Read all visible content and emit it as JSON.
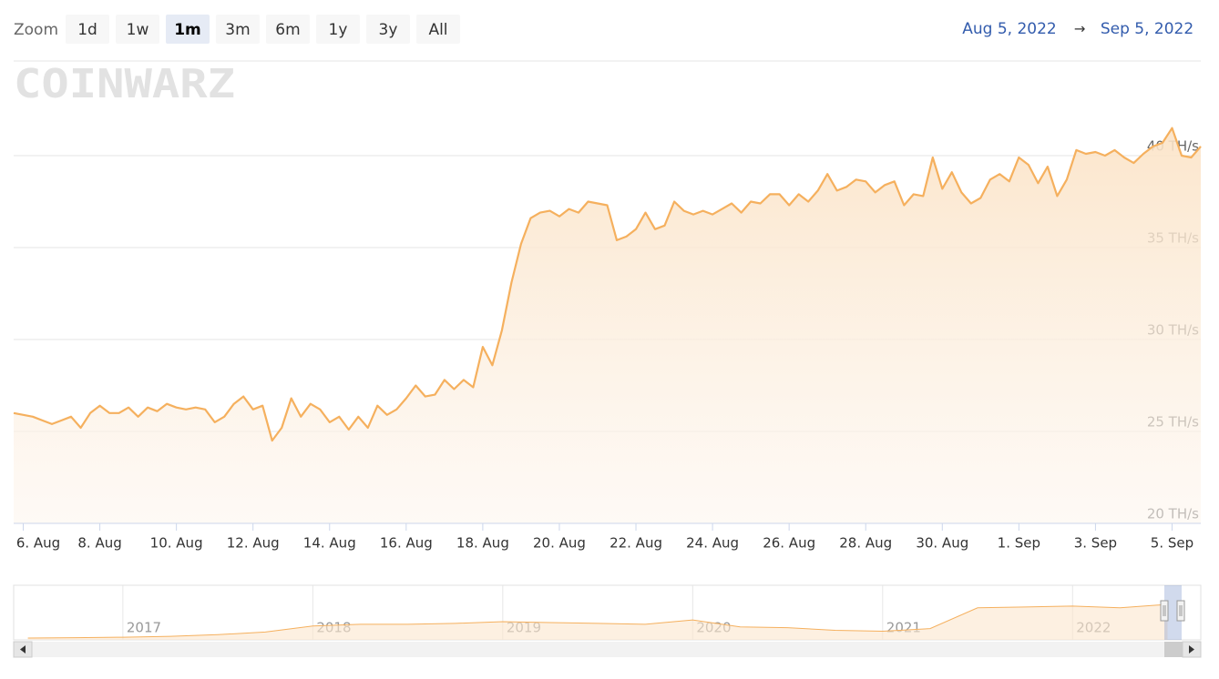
{
  "range_selector": {
    "label": "Zoom",
    "buttons": [
      "1d",
      "1w",
      "1m",
      "3m",
      "6m",
      "1y",
      "3y",
      "All"
    ],
    "selected": "1m",
    "from": "Aug 5, 2022",
    "arrow": "→",
    "to": "Sep 5, 2022"
  },
  "watermark": "COINWARZ",
  "chart_data": {
    "type": "area",
    "color": "#f5b05e",
    "grid": true,
    "ylim": [
      20,
      45
    ],
    "yticks": [
      {
        "value": 20,
        "label": "20 TH/s"
      },
      {
        "value": 25,
        "label": "25 TH/s"
      },
      {
        "value": 30,
        "label": "30 TH/s"
      },
      {
        "value": 35,
        "label": "35 TH/s"
      },
      {
        "value": 40,
        "label": "40 TH/s"
      }
    ],
    "categories": [
      null,
      "6. Aug",
      null,
      null,
      null,
      null,
      null,
      null,
      null,
      "8. Aug",
      null,
      null,
      null,
      null,
      null,
      null,
      null,
      "10. Aug",
      null,
      null,
      null,
      null,
      null,
      null,
      null,
      "12. Aug",
      null,
      null,
      null,
      null,
      null,
      null,
      null,
      "14. Aug",
      null,
      null,
      null,
      null,
      null,
      null,
      null,
      "16. Aug",
      null,
      null,
      null,
      null,
      null,
      null,
      null,
      "18. Aug",
      null,
      null,
      null,
      null,
      null,
      null,
      null,
      "20. Aug",
      null,
      null,
      null,
      null,
      null,
      null,
      null,
      "22. Aug",
      null,
      null,
      null,
      null,
      null,
      null,
      null,
      "24. Aug",
      null,
      null,
      null,
      null,
      null,
      null,
      null,
      "26. Aug",
      null,
      null,
      null,
      null,
      null,
      null,
      null,
      "28. Aug",
      null,
      null,
      null,
      null,
      null,
      null,
      null,
      "30. Aug",
      null,
      null,
      null,
      null,
      null,
      null,
      null,
      "1. Sep",
      null,
      null,
      null,
      null,
      null,
      null,
      null,
      "3. Sep",
      null,
      null,
      null,
      null,
      null,
      null,
      null,
      "5. Sep",
      null,
      null,
      null
    ],
    "values": [
      26.0,
      25.9,
      25.8,
      25.6,
      25.4,
      25.6,
      25.8,
      25.2,
      26.0,
      26.4,
      26.0,
      26.0,
      26.3,
      25.8,
      26.3,
      26.1,
      26.5,
      26.3,
      26.2,
      26.3,
      26.2,
      25.5,
      25.8,
      26.5,
      26.9,
      26.2,
      26.4,
      24.5,
      25.2,
      26.8,
      25.8,
      26.5,
      26.2,
      25.5,
      25.8,
      25.1,
      25.8,
      25.2,
      26.4,
      25.9,
      26.2,
      26.8,
      27.5,
      26.9,
      27.0,
      27.8,
      27.3,
      27.8,
      27.4,
      29.6,
      28.6,
      30.5,
      33.1,
      35.2,
      36.6,
      36.9,
      37.0,
      36.7,
      37.1,
      36.9,
      37.5,
      37.4,
      37.3,
      35.4,
      35.6,
      36.0,
      36.9,
      36.0,
      36.2,
      37.5,
      37.0,
      36.8,
      37.0,
      36.8,
      37.1,
      37.4,
      36.9,
      37.5,
      37.4,
      37.9,
      37.9,
      37.3,
      37.9,
      37.5,
      38.1,
      39.0,
      38.1,
      38.3,
      38.7,
      38.6,
      38.0,
      38.4,
      38.6,
      37.3,
      37.9,
      37.8,
      39.9,
      38.2,
      39.1,
      38.0,
      37.4,
      37.7,
      38.7,
      39.0,
      38.6,
      39.9,
      39.5,
      38.5,
      39.4,
      37.8,
      38.7,
      40.3,
      40.1,
      40.2,
      40.0,
      40.3,
      39.9,
      39.6,
      40.1,
      40.5,
      40.7,
      41.5,
      40.0,
      39.9,
      40.5
    ]
  },
  "navigator": {
    "color": "#f5b05e",
    "categories": [
      null,
      null,
      "2017",
      null,
      null,
      null,
      "2018",
      null,
      null,
      null,
      "2019",
      null,
      null,
      null,
      "2020",
      null,
      null,
      null,
      "2021",
      null,
      null,
      null,
      "2022",
      null,
      null
    ],
    "values": [
      1,
      1.5,
      2,
      3,
      5,
      8,
      15,
      17,
      17,
      18,
      20,
      19,
      18,
      17,
      22,
      14,
      13,
      10,
      9,
      12,
      36,
      37,
      38,
      36,
      40
    ]
  }
}
